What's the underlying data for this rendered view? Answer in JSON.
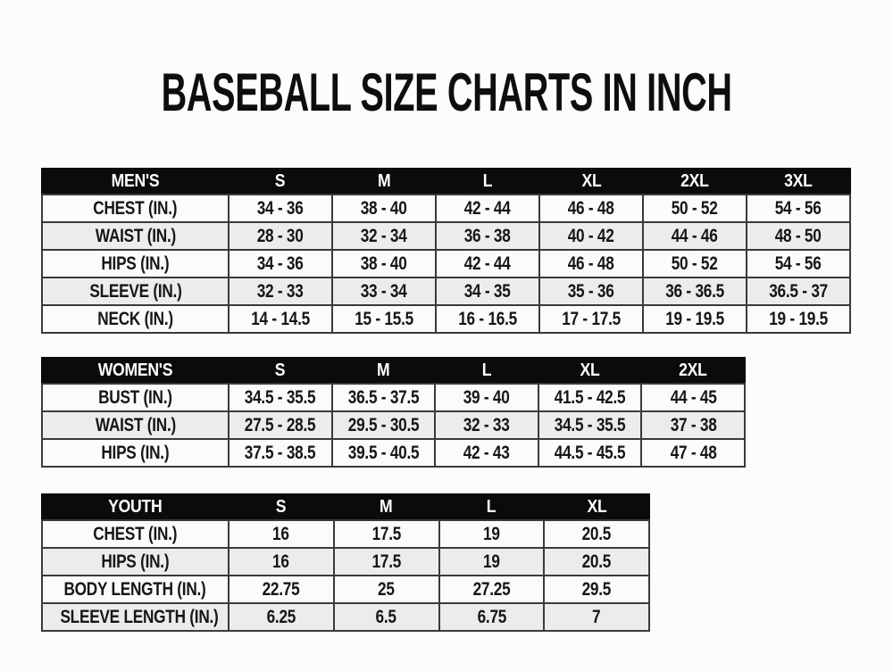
{
  "title": "BASEBALL SIZE CHARTS IN INCH",
  "colors": {
    "header_bg": "#0b0b0b",
    "header_text": "#ffffff",
    "row_white": "#fbfbfb",
    "row_stripe": "#ececec",
    "border": "#3a3a3a",
    "text": "#161616",
    "page_bg": "#fcfcfc"
  },
  "tables": [
    {
      "id": "mens",
      "header": "MEN'S",
      "columns": [
        "S",
        "M",
        "L",
        "XL",
        "2XL",
        "3XL"
      ],
      "rows": [
        {
          "label": "CHEST (IN.)",
          "values": [
            "34 - 36",
            "38 - 40",
            "42 - 44",
            "46 - 48",
            "50 - 52",
            "54 - 56"
          ]
        },
        {
          "label": "WAIST (IN.)",
          "values": [
            "28 - 30",
            "32 - 34",
            "36 - 38",
            "40 - 42",
            "44 - 46",
            "48 - 50"
          ]
        },
        {
          "label": "HIPS (IN.)",
          "values": [
            "34 - 36",
            "38 - 40",
            "42 - 44",
            "46 - 48",
            "50 - 52",
            "54 - 56"
          ]
        },
        {
          "label": "SLEEVE (IN.)",
          "values": [
            "32 - 33",
            "33 - 34",
            "34 - 35",
            "35 - 36",
            "36 - 36.5",
            "36.5 - 37"
          ]
        },
        {
          "label": "NECK (IN.)",
          "values": [
            "14 - 14.5",
            "15 - 15.5",
            "16 - 16.5",
            "17 - 17.5",
            "19 - 19.5",
            "19 - 19.5"
          ]
        }
      ]
    },
    {
      "id": "womens",
      "header": "WOMEN'S",
      "columns": [
        "S",
        "M",
        "L",
        "XL",
        "2XL"
      ],
      "rows": [
        {
          "label": "BUST (IN.)",
          "values": [
            "34.5 - 35.5",
            "36.5 - 37.5",
            "39 - 40",
            "41.5 - 42.5",
            "44 - 45"
          ]
        },
        {
          "label": "WAIST (IN.)",
          "values": [
            "27.5 - 28.5",
            "29.5 - 30.5",
            "32 - 33",
            "34.5 - 35.5",
            "37 - 38"
          ]
        },
        {
          "label": "HIPS (IN.)",
          "values": [
            "37.5 - 38.5",
            "39.5 - 40.5",
            "42 - 43",
            "44.5 - 45.5",
            "47 - 48"
          ]
        }
      ]
    },
    {
      "id": "youth",
      "header": "YOUTH",
      "columns": [
        "S",
        "M",
        "L",
        "XL"
      ],
      "rows": [
        {
          "label": "CHEST (IN.)",
          "values": [
            "16",
            "17.5",
            "19",
            "20.5"
          ]
        },
        {
          "label": "HIPS (IN.)",
          "values": [
            "16",
            "17.5",
            "19",
            "20.5"
          ]
        },
        {
          "label": "BODY LENGTH (IN.)",
          "values": [
            "22.75",
            "25",
            "27.25",
            "29.5"
          ]
        },
        {
          "label": "SLEEVE LENGTH (IN.)",
          "values": [
            "6.25",
            "6.5",
            "6.75",
            "7"
          ]
        }
      ]
    }
  ]
}
